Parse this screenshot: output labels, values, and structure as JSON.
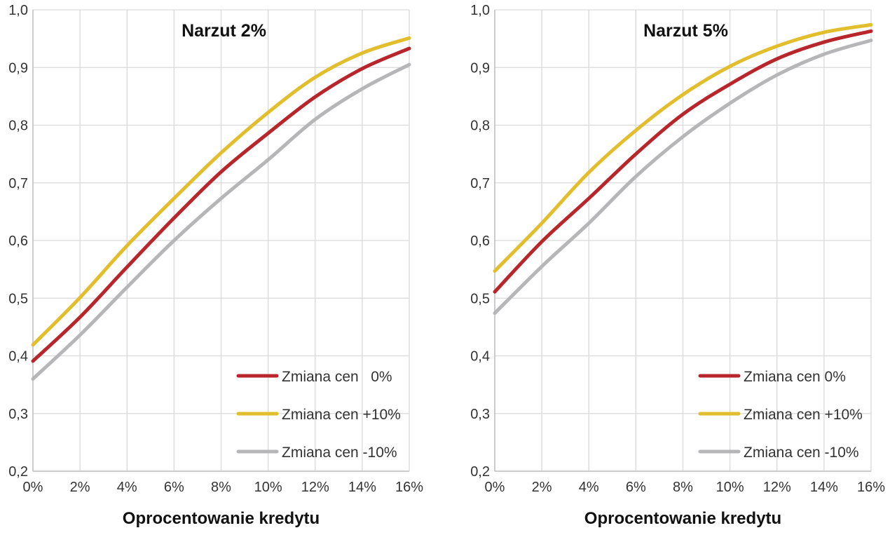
{
  "chart_data": [
    {
      "type": "line",
      "title": "Narzut 2%",
      "xlabel": "Oprocentowanie kredytu",
      "ylabel": "",
      "x": [
        0,
        2,
        4,
        6,
        8,
        10,
        12,
        14,
        16
      ],
      "x_tick_labels": [
        "0%",
        "2%",
        "4%",
        "6%",
        "8%",
        "10%",
        "12%",
        "14%",
        "16%"
      ],
      "y_tick_labels": [
        "0,2",
        "0,3",
        "0,4",
        "0,5",
        "0,6",
        "0,7",
        "0,8",
        "0,9",
        "1,0"
      ],
      "xlim": [
        0,
        16
      ],
      "ylim": [
        0.2,
        1.0
      ],
      "grid": true,
      "legend_position": "bottom-right",
      "series": [
        {
          "name": "Zmiana cen   0%",
          "color": "#b8262b",
          "values": [
            0.391,
            0.467,
            0.554,
            0.639,
            0.719,
            0.786,
            0.849,
            0.898,
            0.933
          ]
        },
        {
          "name": "Zmiana cen +10%",
          "color": "#e2bd2c",
          "values": [
            0.419,
            0.501,
            0.591,
            0.673,
            0.752,
            0.822,
            0.883,
            0.925,
            0.951
          ]
        },
        {
          "name": "Zmiana cen -10%",
          "color": "#b6b6b8",
          "values": [
            0.36,
            0.436,
            0.519,
            0.6,
            0.673,
            0.74,
            0.81,
            0.863,
            0.905
          ]
        }
      ]
    },
    {
      "type": "line",
      "title": "Narzut 5%",
      "xlabel": "Oprocentowanie kredytu",
      "ylabel": "",
      "x": [
        0,
        2,
        4,
        6,
        8,
        10,
        12,
        14,
        16
      ],
      "x_tick_labels": [
        "0%",
        "2%",
        "4%",
        "6%",
        "8%",
        "10%",
        "12%",
        "14%",
        "16%"
      ],
      "y_tick_labels": [
        "0,2",
        "0,3",
        "0,4",
        "0,5",
        "0,6",
        "0,7",
        "0,8",
        "0,9",
        "1,0"
      ],
      "xlim": [
        0,
        16
      ],
      "ylim": [
        0.2,
        1.0
      ],
      "grid": true,
      "legend_position": "bottom-right",
      "series": [
        {
          "name": "Zmiana cen 0%",
          "color": "#b8262b",
          "values": [
            0.511,
            0.598,
            0.673,
            0.75,
            0.819,
            0.871,
            0.915,
            0.944,
            0.963
          ]
        },
        {
          "name": "Zmiana cen +10%",
          "color": "#e2bd2c",
          "values": [
            0.547,
            0.63,
            0.718,
            0.791,
            0.853,
            0.902,
            0.937,
            0.961,
            0.974
          ]
        },
        {
          "name": "Zmiana cen -10%",
          "color": "#b6b6b8",
          "values": [
            0.474,
            0.555,
            0.63,
            0.711,
            0.78,
            0.838,
            0.887,
            0.923,
            0.947
          ]
        }
      ]
    }
  ]
}
